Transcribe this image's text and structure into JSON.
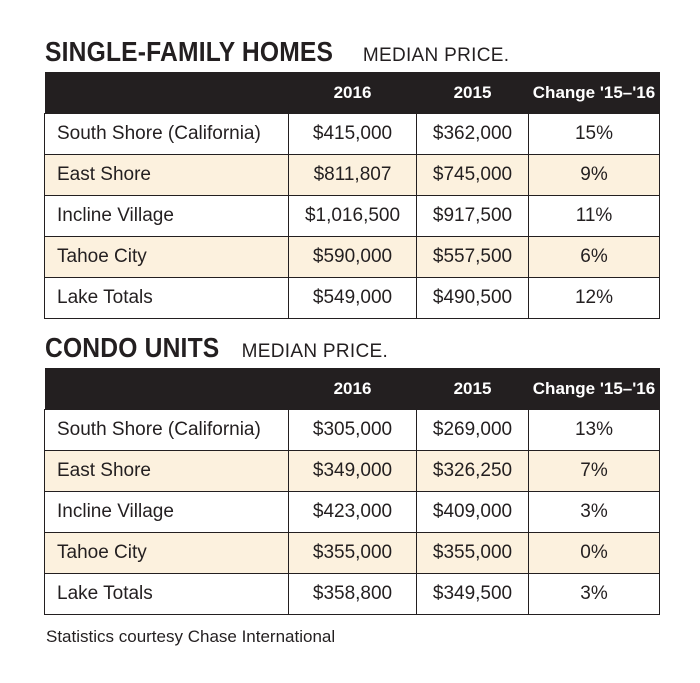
{
  "sfh": {
    "title": "SINGLE-FAMILY HOMES",
    "subtitle": "MEDIAN PRICE.",
    "headers": [
      "",
      "2016",
      "2015",
      "Change '15–'16"
    ],
    "rows": [
      {
        "area": "South Shore (California)",
        "y2016": "$415,000",
        "y2015": "$362,000",
        "change": "15%"
      },
      {
        "area": "East Shore",
        "y2016": "$811,807",
        "y2015": "$745,000",
        "change": "9%"
      },
      {
        "area": "Incline Village",
        "y2016": "$1,016,500",
        "y2015": "$917,500",
        "change": "11%"
      },
      {
        "area": "Tahoe City",
        "y2016": "$590,000",
        "y2015": "$557,500",
        "change": "6%"
      },
      {
        "area": "Lake Totals",
        "y2016": "$549,000",
        "y2015": "$490,500",
        "change": "12%"
      }
    ]
  },
  "condo": {
    "title": "CONDO UNITS",
    "subtitle": "MEDIAN PRICE.",
    "headers": [
      "",
      "2016",
      "2015",
      "Change '15–'16"
    ],
    "rows": [
      {
        "area": "South Shore (California)",
        "y2016": "$305,000",
        "y2015": "$269,000",
        "change": "13%"
      },
      {
        "area": "East Shore",
        "y2016": "$349,000",
        "y2015": "$326,250",
        "change": "7%"
      },
      {
        "area": "Incline Village",
        "y2016": "$423,000",
        "y2015": "$409,000",
        "change": "3%"
      },
      {
        "area": "Tahoe City",
        "y2016": "$355,000",
        "y2015": "$355,000",
        "change": "0%"
      },
      {
        "area": "Lake Totals",
        "y2016": "$358,800",
        "y2015": "$349,500",
        "change": "3%"
      }
    ]
  },
  "footnote": "Statistics courtesy Chase International",
  "colors": {
    "header_bg": "#231f20",
    "alt_row_bg": "#fcf1de",
    "text": "#231f20"
  }
}
